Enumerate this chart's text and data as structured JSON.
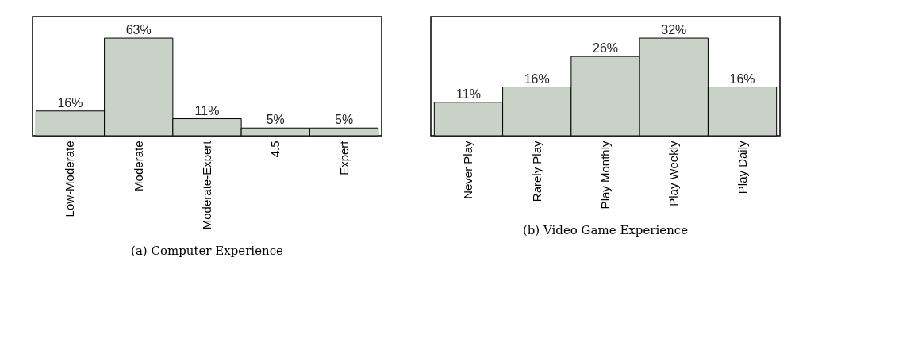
{
  "chart_data": [
    {
      "type": "bar",
      "title": "(a) Computer Experience",
      "categories": [
        "Low-Moderate",
        "Moderate",
        "Moderate-Expert",
        "4.5",
        "Expert"
      ],
      "values": [
        16,
        63,
        11,
        5,
        5
      ],
      "value_labels": [
        "16%",
        "63%",
        "11%",
        "5%",
        "5%"
      ],
      "color": "#c8d2c6"
    },
    {
      "type": "bar",
      "title": "(b) Video Game Experience",
      "categories": [
        "Never Play",
        "Rarely Play",
        "Play Monthly",
        "Play Weekly",
        "Play Daily"
      ],
      "values": [
        11,
        16,
        26,
        32,
        16
      ],
      "value_labels": [
        "11%",
        "16%",
        "26%",
        "32%",
        "16%"
      ],
      "color": "#c8d2c6"
    }
  ]
}
